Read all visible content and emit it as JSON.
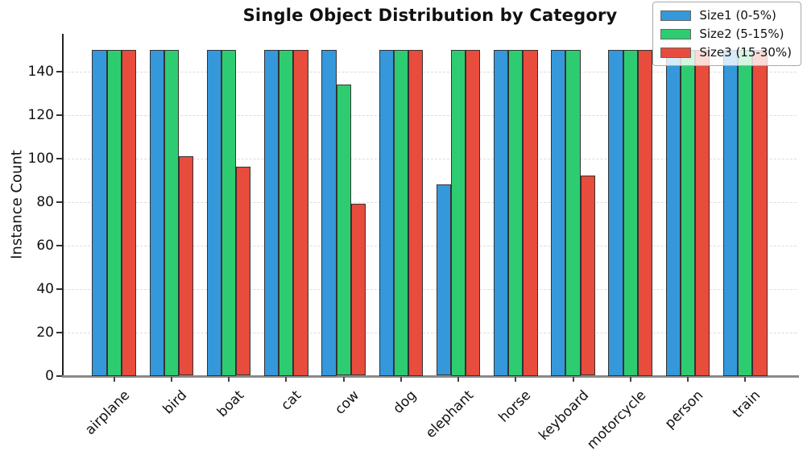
{
  "chart_data": {
    "type": "bar",
    "title": "Single Object Distribution by Category",
    "ylabel": "Instance Count",
    "xlabel": "",
    "categories": [
      "airplane",
      "bird",
      "boat",
      "cat",
      "cow",
      "dog",
      "elephant",
      "horse",
      "keyboard",
      "motorcycle",
      "person",
      "train"
    ],
    "series": [
      {
        "name": "Size1 (0-5%)",
        "color": "#3498db",
        "values": [
          150,
          150,
          150,
          150,
          150,
          150,
          88,
          150,
          150,
          150,
          150,
          150
        ]
      },
      {
        "name": "Size2 (5-15%)",
        "color": "#2ecc71",
        "values": [
          150,
          150,
          150,
          150,
          134,
          150,
          150,
          150,
          150,
          150,
          150,
          150
        ]
      },
      {
        "name": "Size3 (15-30%)",
        "color": "#e74c3c",
        "values": [
          150,
          101,
          96,
          150,
          79,
          150,
          150,
          150,
          92,
          150,
          150,
          150
        ]
      }
    ],
    "ylim": [
      0,
      157
    ],
    "yticks": [
      0,
      20,
      40,
      60,
      80,
      100,
      120,
      140
    ],
    "grid": "horizontal-dashed",
    "legend_position": "upper-right",
    "bar_edge_color": "#333333",
    "gridline_color": "#dcdcdc"
  }
}
